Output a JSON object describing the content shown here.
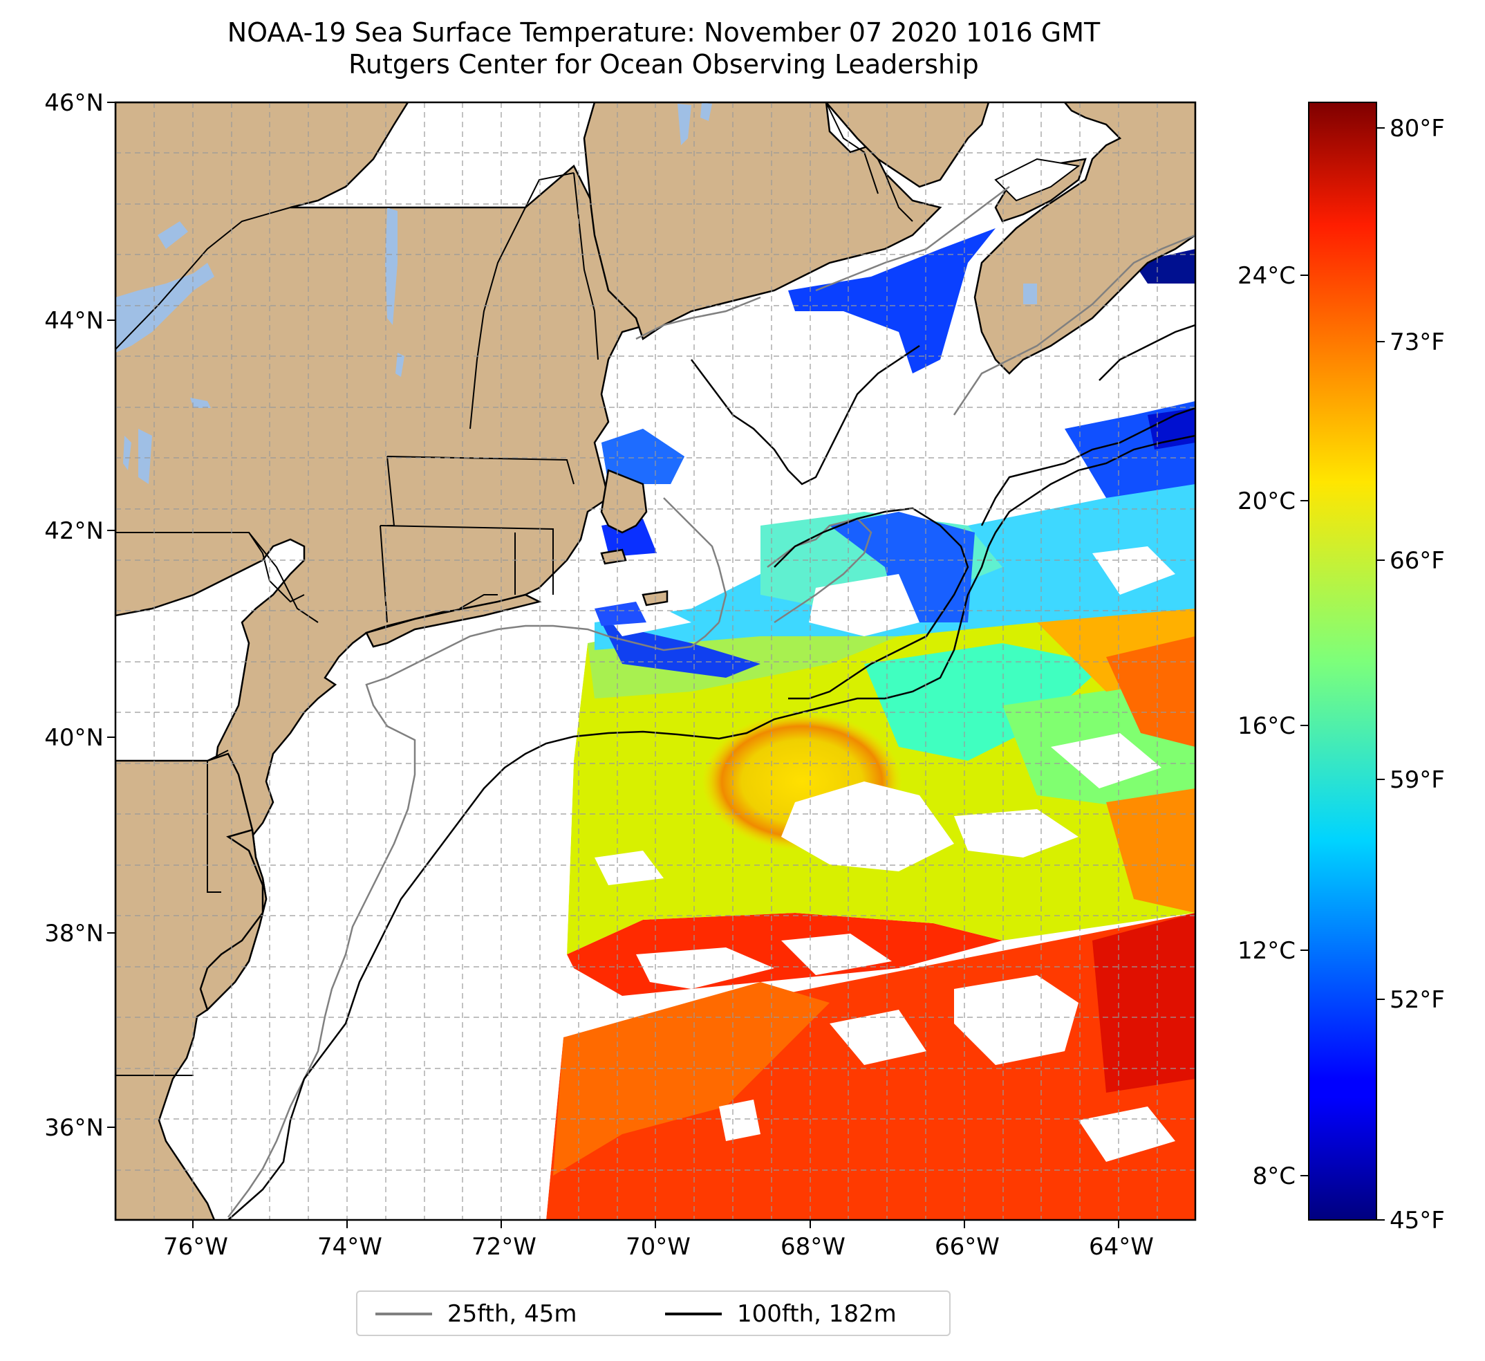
{
  "title": "NOAA-19 Sea Surface Temperature: November 07 2020 1016 GMT",
  "subtitle": "Rutgers Center for Ocean Observing Leadership",
  "map": {
    "lat_labels": [
      "46°N",
      "44°N",
      "42°N",
      "40°N",
      "38°N",
      "36°N"
    ],
    "lon_labels": [
      "76°W",
      "74°W",
      "72°W",
      "70°W",
      "68°W",
      "66°W",
      "64°W"
    ],
    "lat_range": [
      35.1,
      46.0
    ],
    "lon_range": [
      -77.0,
      -63.0
    ],
    "land_color": "#d2b48c",
    "lake_color": "#9fbfe5",
    "grid": "dashed"
  },
  "colorbar": {
    "celsius_labels": [
      "24°C",
      "20°C",
      "16°C",
      "12°C",
      "8°C"
    ],
    "fahrenheit_labels": [
      "80°F",
      "73°F",
      "66°F",
      "59°F",
      "52°F",
      "45°F"
    ],
    "colormap": "jet"
  },
  "legend": [
    {
      "label": "25fth, 45m",
      "color": "#808080"
    },
    {
      "label": "100fth, 182m",
      "color": "#000000"
    }
  ]
}
